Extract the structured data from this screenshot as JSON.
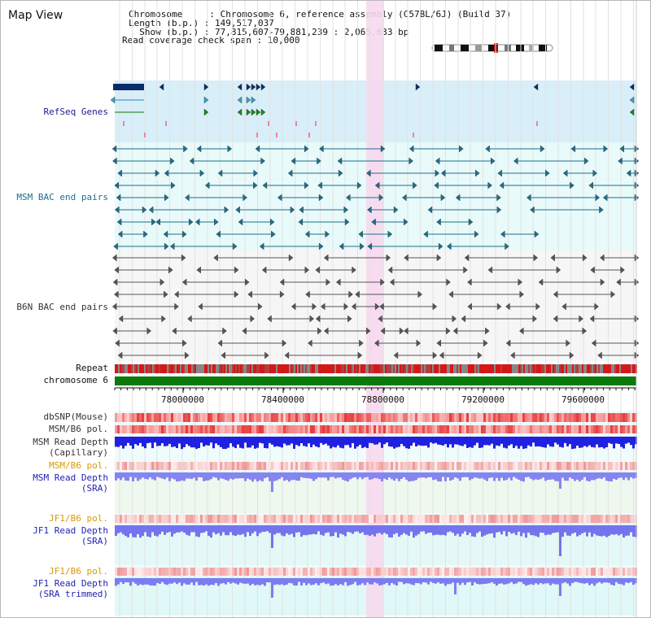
{
  "header": {
    "view_title": "Map View",
    "chromosome": "Chromosome     : Chromosome 6, reference assembly (C57BL/6J) (Build 37)",
    "length": "Length (b.p.) : 149,517,037",
    "show": "  Show (b.p.) : 77,815,607-79,881,239 : 2,065,633 bp",
    "coverage": "Read coverage check span : 10,000"
  },
  "tracks": {
    "refseq": "RefSeq Genes",
    "msm_bac": "MSM BAC end pairs",
    "b6n_bac": "B6N BAC end pairs",
    "repeat": "Repeat",
    "chromosome": "chromosome 6",
    "dbsnp": "dbSNP(Mouse)",
    "msm_b6_pol": "MSM/B6 pol.",
    "msm_depth_cap_1": "MSM Read Depth",
    "msm_depth_cap_2": "(Capillary)",
    "msm_b6_pol_2": "MSM/B6 pol.",
    "msm_depth_sra_1": "MSM Read Depth",
    "msm_depth_sra_2": "(SRA)",
    "jf1_b6_pol": "JF1/B6 pol.",
    "jf1_depth_sra_1": "JF1 Read Depth",
    "jf1_depth_sra_2": "(SRA)",
    "jf1_b6_pol_2": "JF1/B6 pol.",
    "jf1_depth_trim_1": "JF1 Read Depth",
    "jf1_depth_trim_2": "(SRA trimmed)"
  },
  "axis": {
    "ticks": [
      "78000000",
      "78400000",
      "78800000",
      "79200000",
      "79600000"
    ]
  },
  "colors": {
    "refseq_bg": "#d8eef8",
    "bac_bg": "#e8fafa",
    "highlight": "#f8d8f0",
    "chromosome": "#0a7a0a",
    "msm_depth": "#2020e0",
    "sra_depth": "#8080f0"
  }
}
